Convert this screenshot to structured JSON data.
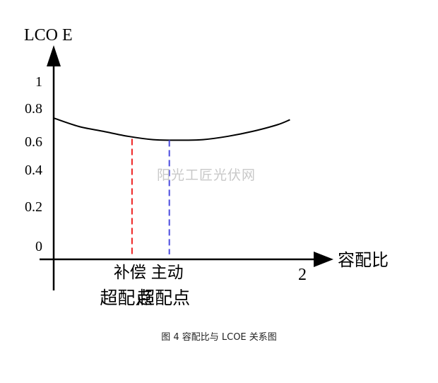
{
  "chart_data": {
    "type": "line",
    "title": "",
    "ylabel": "LCO E",
    "xlabel": "容配比",
    "ylim": [
      0,
      1
    ],
    "xlim": [
      0,
      2
    ],
    "y_ticks": [
      {
        "value": 0,
        "label": "0"
      },
      {
        "value": 0.2,
        "label": "0.2"
      },
      {
        "value": 0.4,
        "label": "0.4"
      },
      {
        "value": 0.6,
        "label": "0.6"
      },
      {
        "value": 0.8,
        "label": "0.8"
      },
      {
        "value": 1,
        "label": "1"
      }
    ],
    "x_ticks": [
      {
        "value": 2,
        "label": "2"
      }
    ],
    "grid": false,
    "series": [
      {
        "x": [
          0,
          0.2,
          0.4,
          0.6,
          0.8,
          0.95,
          1.05,
          1.2,
          1.4,
          1.6,
          1.8,
          1.9
        ],
        "y": [
          0.74,
          0.69,
          0.66,
          0.63,
          0.61,
          0.607,
          0.607,
          0.61,
          0.63,
          0.66,
          0.7,
          0.73
        ],
        "color": "#000000"
      }
    ],
    "markers": [
      {
        "x": 0.63,
        "y": 0.615,
        "color": "#ee2222",
        "label_line1": "补偿",
        "label_line2": "超配点"
      },
      {
        "x": 0.93,
        "y": 0.607,
        "color": "#4a4adf",
        "label_line1": "主动",
        "label_line2": "超配点"
      }
    ]
  },
  "caption": "图 4  容配比与 LCOE 关系图",
  "watermark": "阳光工匠光伏网"
}
